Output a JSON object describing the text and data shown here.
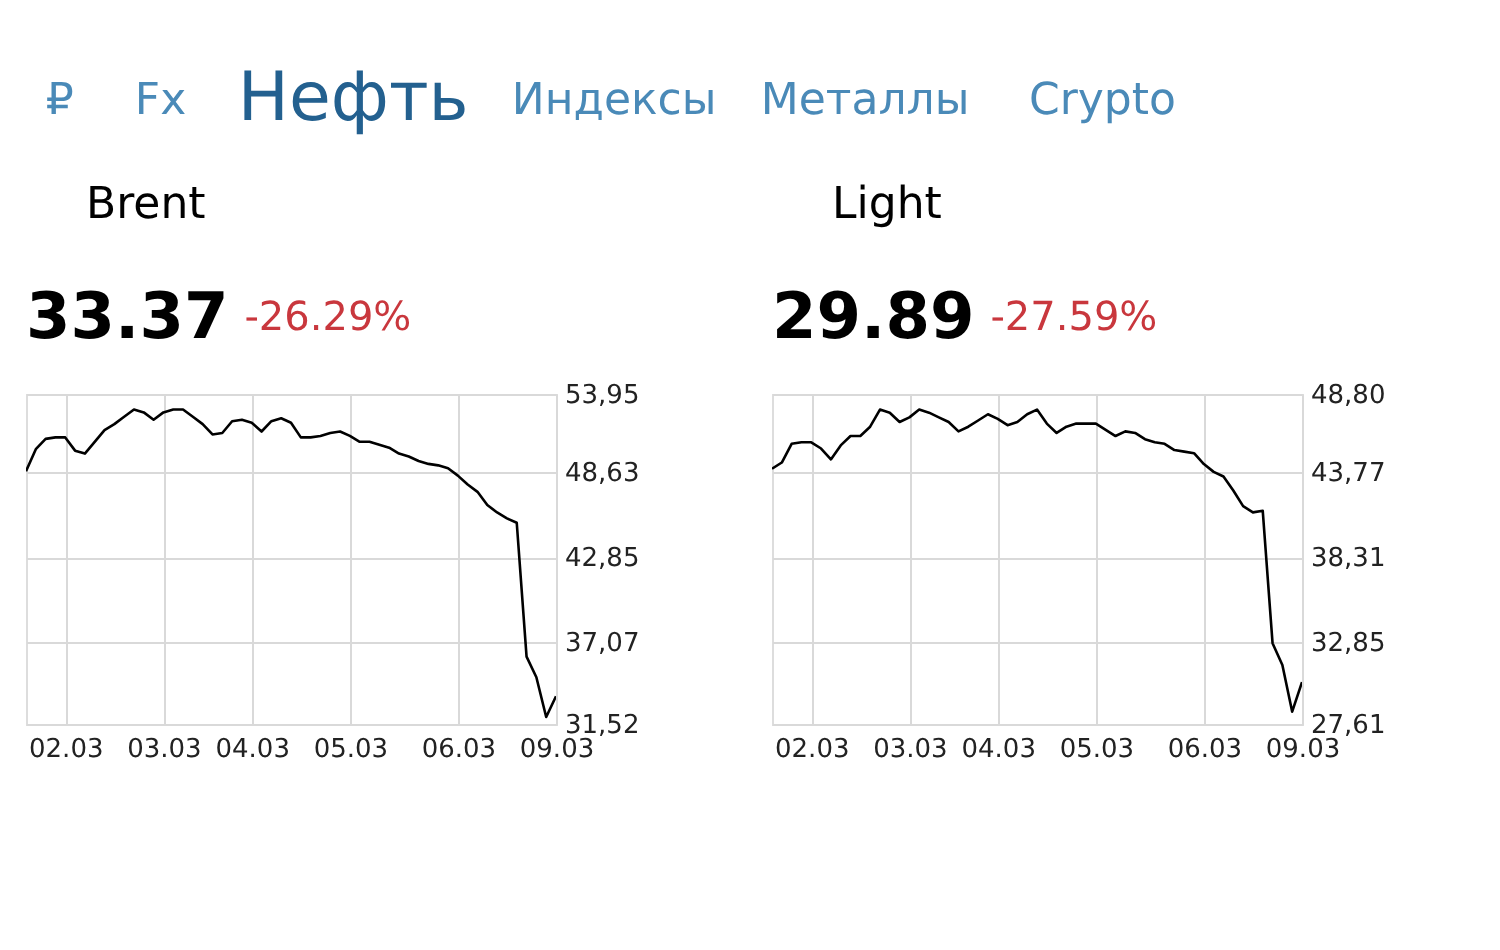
{
  "chart_data": [
    {
      "type": "other",
      "annotations": [
        "₽",
        "Fx",
        "Нефть",
        "Индексы",
        "Металлы",
        "Crypto"
      ]
    },
    {
      "type": "line",
      "title": "Brent",
      "annotations": [
        "33.37",
        "-26.29%"
      ],
      "categories": [
        null,
        null,
        null,
        null,
        "02.03",
        null,
        null,
        null,
        null,
        null,
        null,
        null,
        null,
        null,
        "03.03",
        null,
        null,
        null,
        null,
        null,
        null,
        null,
        null,
        "04.03",
        null,
        null,
        null,
        null,
        null,
        null,
        null,
        null,
        null,
        "05.03",
        null,
        null,
        null,
        null,
        null,
        null,
        null,
        null,
        null,
        null,
        "06.03",
        null,
        null,
        null,
        null,
        null,
        null,
        null,
        null,
        null,
        "09.03"
      ],
      "series": [
        {
          "color": "#000000",
          "values": [
            48.7,
            50.2,
            50.9,
            51.0,
            51.0,
            50.1,
            49.9,
            50.7,
            51.5,
            51.9,
            52.4,
            52.9,
            52.7,
            52.2,
            52.7,
            52.9,
            52.9,
            52.4,
            51.9,
            51.2,
            51.3,
            52.1,
            52.2,
            52.0,
            51.4,
            52.1,
            52.3,
            52.0,
            51.0,
            51.0,
            51.1,
            51.3,
            51.4,
            51.1,
            50.7,
            50.7,
            50.5,
            50.3,
            49.9,
            49.7,
            49.4,
            49.2,
            49.1,
            48.9,
            48.4,
            47.8,
            47.3,
            46.4,
            45.9,
            45.5,
            45.2,
            36.1,
            34.7,
            32.0,
            33.4
          ]
        }
      ],
      "ylim": [
        31.52,
        53.95
      ],
      "yticks": [
        {
          "value": 31.52,
          "label": "31,52"
        },
        {
          "value": 37.07,
          "label": "37,07"
        },
        {
          "value": 42.85,
          "label": "42,85"
        },
        {
          "value": 48.63,
          "label": "48,63"
        },
        {
          "value": 53.95,
          "label": "53,95"
        }
      ],
      "grid": true
    },
    {
      "type": "line",
      "title": "Light",
      "annotations": [
        "29.89",
        "-27.59%"
      ],
      "categories": [
        null,
        null,
        null,
        null,
        "02.03",
        null,
        null,
        null,
        null,
        null,
        null,
        null,
        null,
        null,
        "03.03",
        null,
        null,
        null,
        null,
        null,
        null,
        null,
        null,
        "04.03",
        null,
        null,
        null,
        null,
        null,
        null,
        null,
        null,
        null,
        "05.03",
        null,
        null,
        null,
        null,
        null,
        null,
        null,
        null,
        null,
        null,
        "06.03",
        null,
        null,
        null,
        null,
        null,
        null,
        null,
        null,
        null,
        "09.03"
      ],
      "series": [
        {
          "color": "#000000",
          "values": [
            44.0,
            44.4,
            45.6,
            45.7,
            45.7,
            45.3,
            44.6,
            45.5,
            46.1,
            46.1,
            46.7,
            47.8,
            47.6,
            47.0,
            47.3,
            47.8,
            47.6,
            47.3,
            47.0,
            46.4,
            46.7,
            47.1,
            47.5,
            47.2,
            46.8,
            47.0,
            47.5,
            47.8,
            46.9,
            46.3,
            46.7,
            46.9,
            46.9,
            46.9,
            46.5,
            46.1,
            46.4,
            46.3,
            45.9,
            45.7,
            45.6,
            45.2,
            45.1,
            45.0,
            44.3,
            43.8,
            43.5,
            42.6,
            41.6,
            41.2,
            41.3,
            32.8,
            31.4,
            28.4,
            30.3
          ]
        }
      ],
      "ylim": [
        27.61,
        48.8
      ],
      "yticks": [
        {
          "value": 27.61,
          "label": "27,61"
        },
        {
          "value": 32.85,
          "label": "32,85"
        },
        {
          "value": 38.31,
          "label": "38,31"
        },
        {
          "value": 43.77,
          "label": "43,77"
        },
        {
          "value": 48.8,
          "label": "48,80"
        }
      ],
      "grid": true
    }
  ]
}
